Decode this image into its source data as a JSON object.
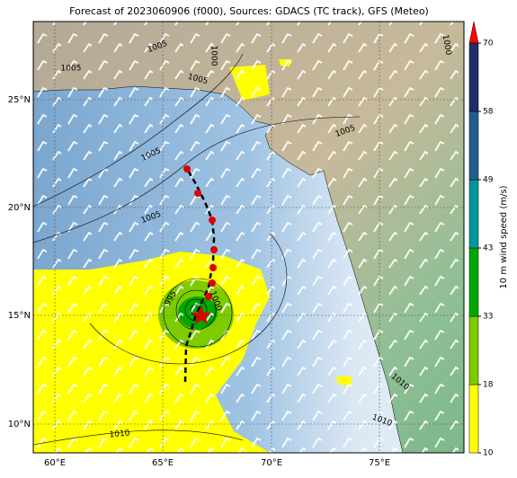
{
  "title": "Forecast of 2023060906 (f000), Sources: GDACS (TC track), GFS (Meteo)",
  "map": {
    "lon_labels": [
      "60°E",
      "65°E",
      "70°E",
      "75°E"
    ],
    "lat_labels": [
      "25°N",
      "20°N",
      "15°N",
      "10°N"
    ],
    "contour_labels": [
      "1005",
      "1005",
      "1005",
      "1000",
      "1005",
      "1005",
      "1005",
      "995",
      "1000",
      "1010",
      "1010",
      "1010",
      "1000"
    ]
  },
  "colorbar": {
    "label": "10 m wind speed (m/s)",
    "ticks": [
      10,
      18,
      33,
      43,
      49,
      58,
      70
    ],
    "colors": [
      "#ffff00",
      "#7ccc00",
      "#00a800",
      "#009898",
      "#1f5f8f",
      "#1f2f68"
    ],
    "extend_color": "#ff0000"
  }
}
